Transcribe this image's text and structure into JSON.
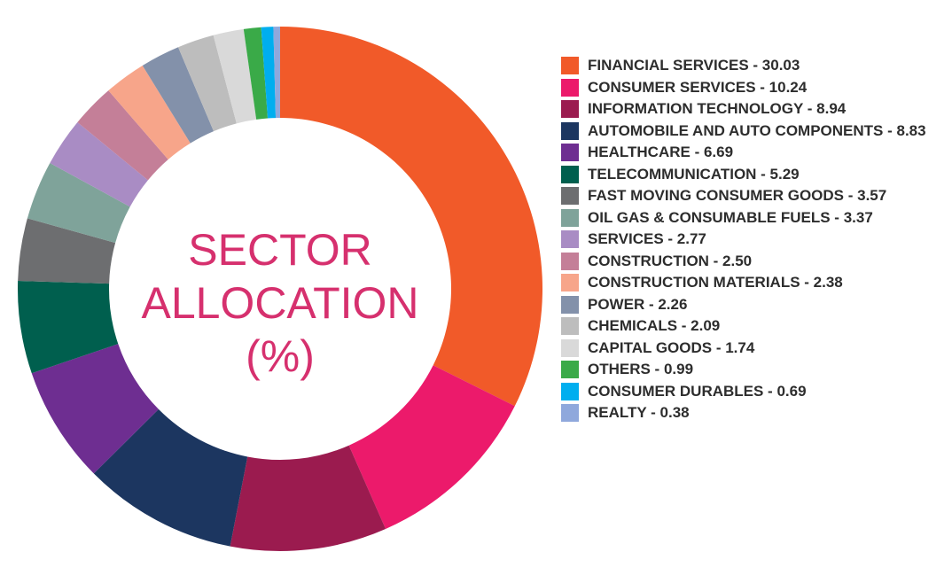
{
  "chart_data": {
    "type": "donut",
    "title": "SECTOR ALLOCATION (%)",
    "categories": [
      "FINANCIAL SERVICES - 30.03",
      "CONSUMER SERVICES - 10.24",
      "INFORMATION TECHNOLOGY - 8.94",
      "AUTOMOBILE AND AUTO COMPONENTS - 8.83",
      "HEALTHCARE - 6.69",
      "TELECOMMUNICATION - 5.29",
      "FAST MOVING CONSUMER GOODS - 3.57",
      "OIL GAS & CONSUMABLE FUELS - 3.37",
      "SERVICES - 2.77",
      "CONSTRUCTION - 2.50",
      "CONSTRUCTION MATERIALS - 2.38",
      "POWER - 2.26",
      "CHEMICALS - 2.09",
      "CAPITAL GOODS - 1.74",
      "OTHERS - 0.99",
      "CONSUMER DURABLES - 0.69",
      "REALTY - 0.38"
    ],
    "values": [
      30.03,
      10.24,
      8.94,
      8.83,
      6.69,
      5.29,
      3.57,
      3.37,
      2.77,
      2.5,
      2.38,
      2.26,
      2.09,
      1.74,
      0.99,
      0.69,
      0.38
    ],
    "colors": [
      "#f15a29",
      "#ec1a6b",
      "#9b1b4f",
      "#1c3660",
      "#6e2e91",
      "#005f4e",
      "#6d6e70",
      "#7fa39a",
      "#a98cc4",
      "#c47f98",
      "#f7a58a",
      "#8391aa",
      "#bdbdbd",
      "#d9d9d9",
      "#3aaa48",
      "#00aeef",
      "#8fa8dc"
    ],
    "legend": "right"
  }
}
